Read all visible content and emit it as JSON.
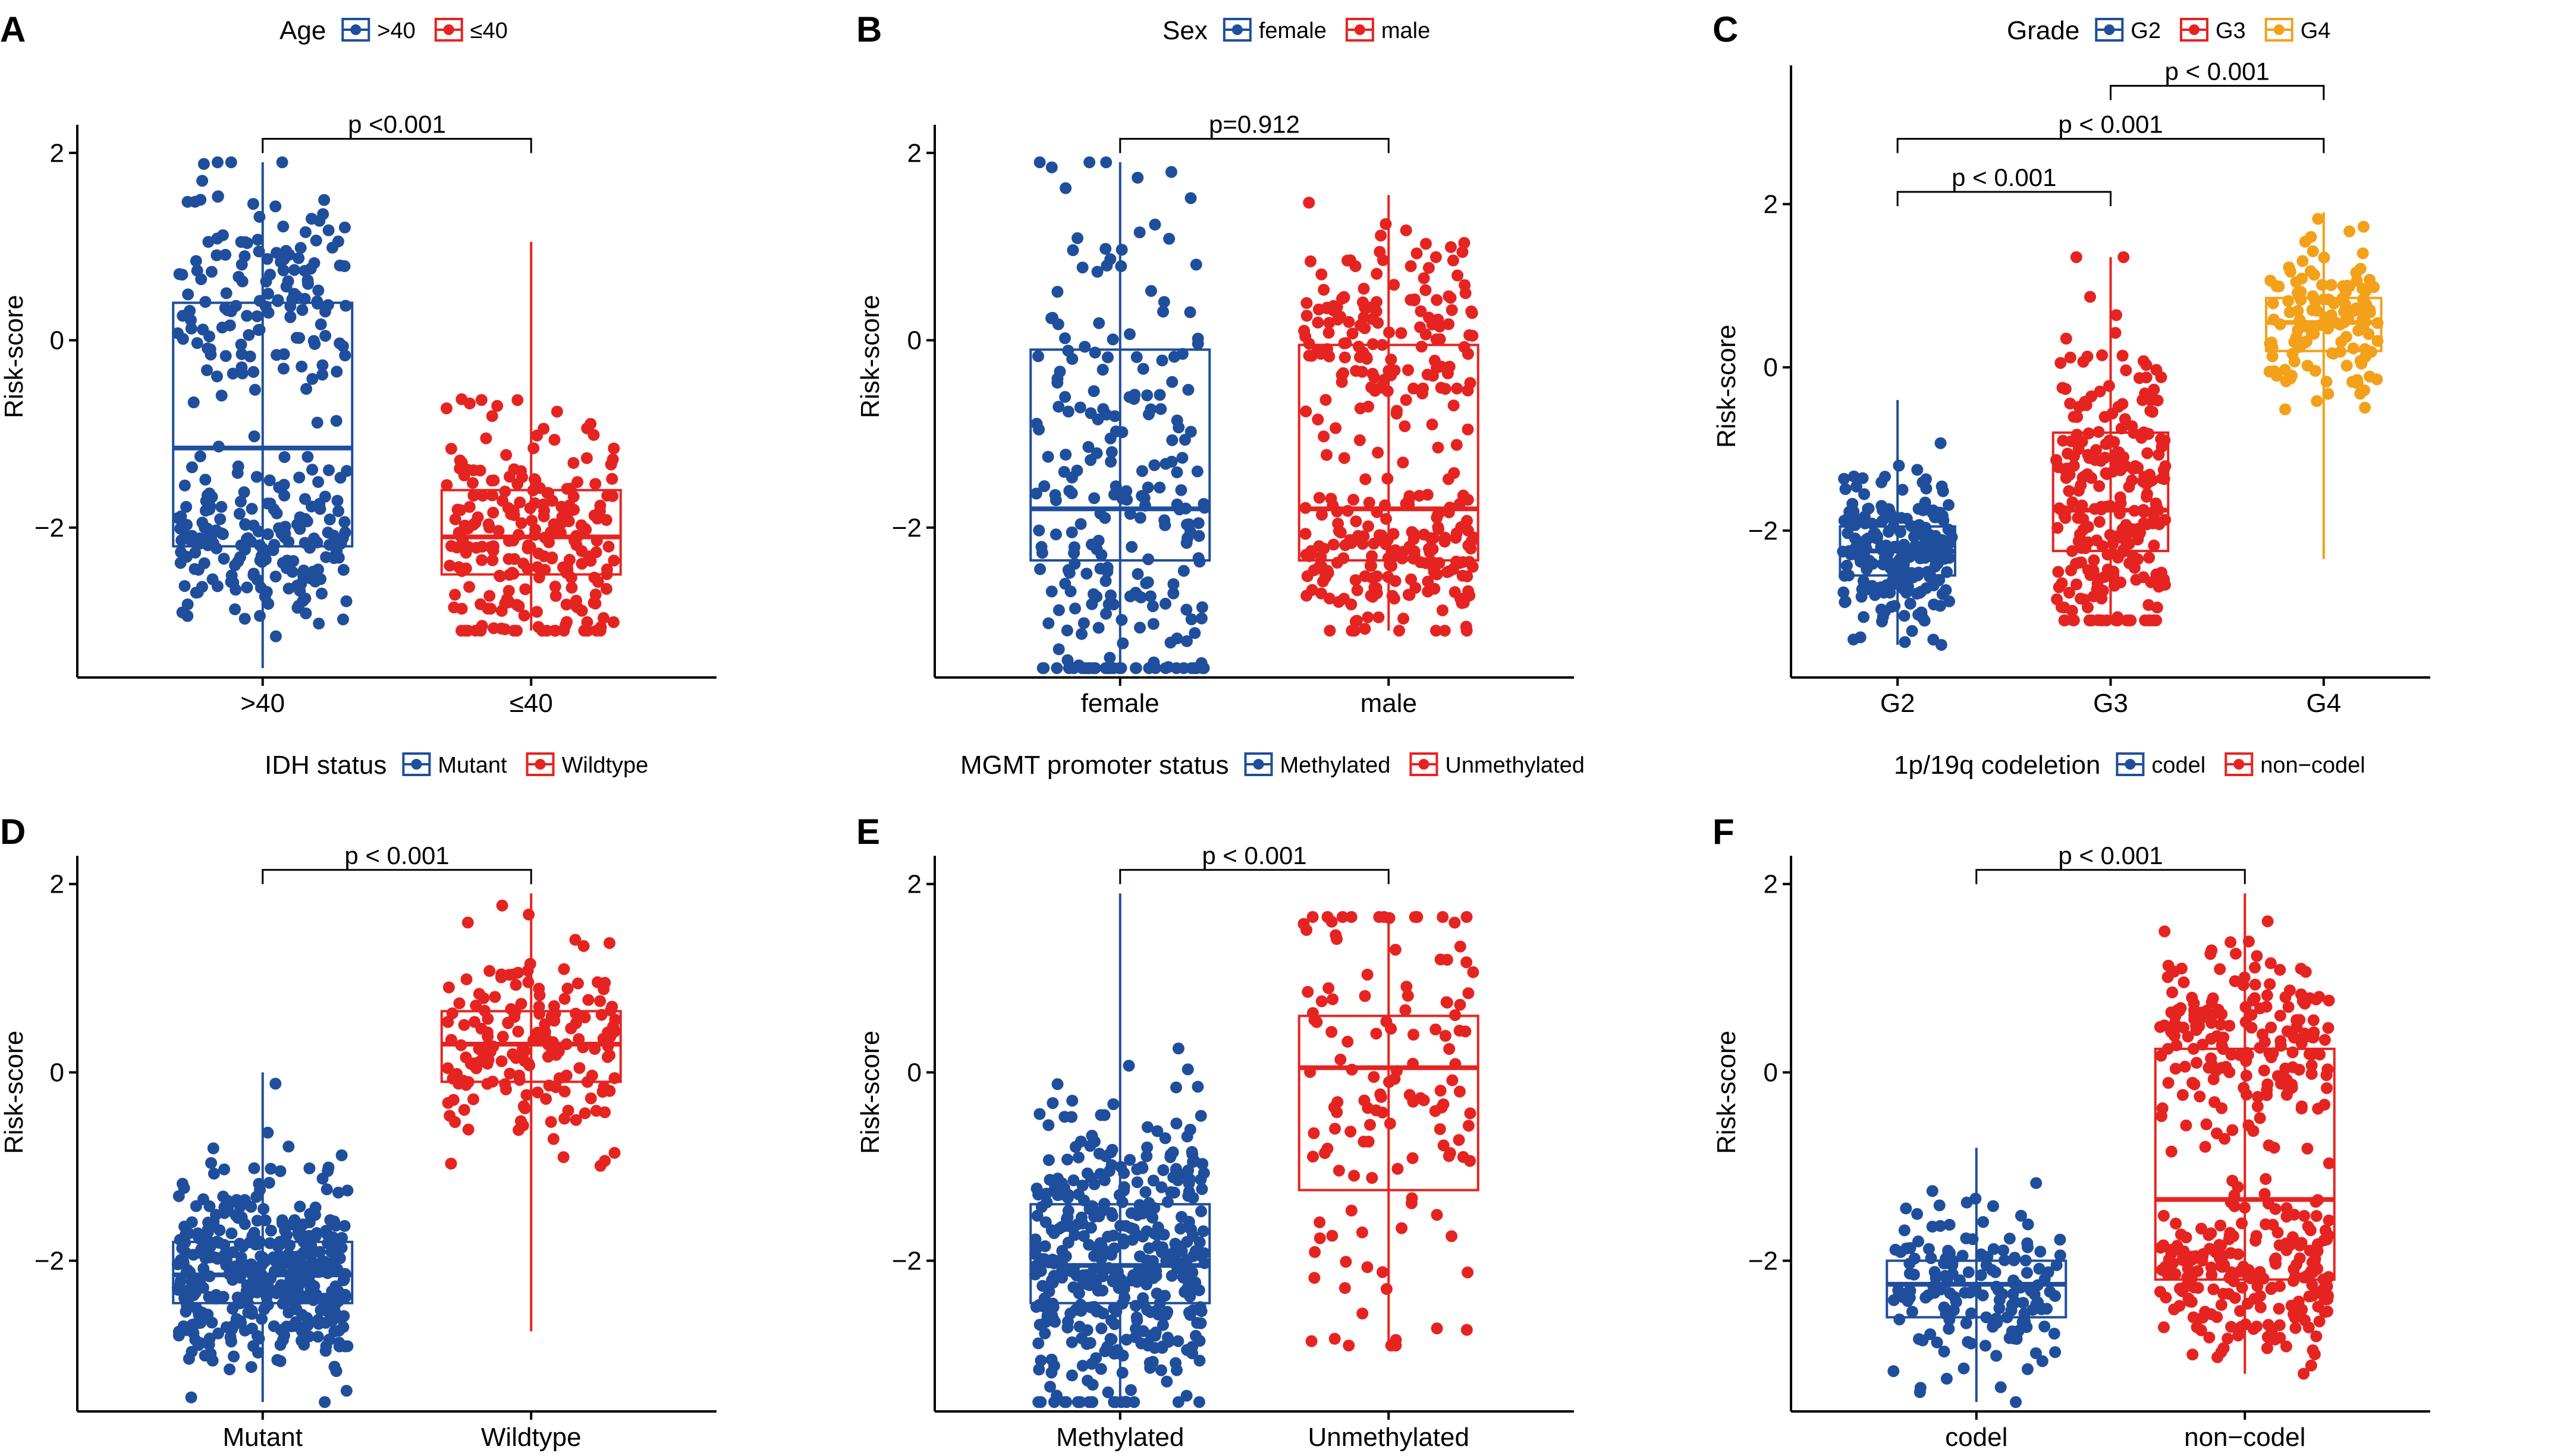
{
  "colors": {
    "blue": "#1f4e9c",
    "red": "#e52421",
    "orange": "#f3a11a",
    "axis": "#000000"
  },
  "chart_data": [
    {
      "panel": "A",
      "type": "boxplot",
      "legend_title": "Age",
      "ylabel": "Risk-score",
      "ylim": [
        -3.6,
        2.3
      ],
      "yticks": [
        "2",
        "0",
        "−2"
      ],
      "groups": [
        {
          "name": ">40",
          "color": "blue",
          "n": 330,
          "min": -3.5,
          "q1": -2.2,
          "median": -1.15,
          "q3": 0.4,
          "max": 1.9,
          "dist": "bimodal"
        },
        {
          "name": "≤40",
          "color": "red",
          "n": 230,
          "min": -3.1,
          "q1": -2.5,
          "median": -2.1,
          "q3": -1.6,
          "max": 1.05,
          "dist": "normal"
        }
      ],
      "comparisons": [
        {
          "from": 0,
          "to": 1,
          "y": 2.15,
          "label": "p <0.001"
        }
      ]
    },
    {
      "panel": "B",
      "type": "boxplot",
      "legend_title": "Sex",
      "ylabel": "Risk-score",
      "ylim": [
        -3.6,
        2.3
      ],
      "yticks": [
        "2",
        "0",
        "−2"
      ],
      "groups": [
        {
          "name": "female",
          "color": "blue",
          "n": 240,
          "min": -3.5,
          "q1": -2.35,
          "median": -1.8,
          "q3": -0.1,
          "max": 1.9,
          "dist": "normal"
        },
        {
          "name": "male",
          "color": "red",
          "n": 330,
          "min": -3.1,
          "q1": -2.35,
          "median": -1.8,
          "q3": -0.05,
          "max": 1.55,
          "dist": "bimodal"
        }
      ],
      "comparisons": [
        {
          "from": 0,
          "to": 1,
          "y": 2.15,
          "label": "p=0.912"
        }
      ]
    },
    {
      "panel": "C",
      "type": "boxplot",
      "legend_title": "Grade",
      "ylabel": "Risk-score",
      "ylim": [
        -3.8,
        3.7
      ],
      "yticks": [
        "2",
        "0",
        "−2"
      ],
      "groups": [
        {
          "name": "G2",
          "color": "blue",
          "n": 220,
          "min": -3.4,
          "q1": -2.55,
          "median": -2.25,
          "q3": -1.95,
          "max": -0.4,
          "dist": "normal"
        },
        {
          "name": "G3",
          "color": "red",
          "n": 260,
          "min": -3.1,
          "q1": -2.25,
          "median": -1.75,
          "q3": -0.8,
          "max": 1.35,
          "dist": "normal"
        },
        {
          "name": "G4",
          "color": "orange",
          "n": 130,
          "min": -2.35,
          "q1": 0.2,
          "median": 0.55,
          "q3": 0.85,
          "max": 1.9,
          "dist": "normal"
        }
      ],
      "comparisons": [
        {
          "from": 0,
          "to": 1,
          "y": 2.15,
          "label": "p < 0.001"
        },
        {
          "from": 0,
          "to": 2,
          "y": 2.8,
          "label": "p < 0.001"
        },
        {
          "from": 1,
          "to": 2,
          "y": 3.45,
          "label": "p < 0.001"
        }
      ]
    },
    {
      "panel": "D",
      "type": "boxplot",
      "legend_title": "IDH status",
      "ylabel": "Risk-score",
      "ylim": [
        -3.6,
        2.3
      ],
      "yticks": [
        "2",
        "0",
        "−2"
      ],
      "groups": [
        {
          "name": "Mutant",
          "color": "blue",
          "n": 400,
          "min": -3.5,
          "q1": -2.45,
          "median": -2.15,
          "q3": -1.8,
          "max": 0.0,
          "dist": "normal"
        },
        {
          "name": "Wildtype",
          "color": "red",
          "n": 170,
          "min": -2.75,
          "q1": -0.1,
          "median": 0.3,
          "q3": 0.65,
          "max": 1.9,
          "dist": "normal"
        }
      ],
      "comparisons": [
        {
          "from": 0,
          "to": 1,
          "y": 2.15,
          "label": "p < 0.001"
        }
      ]
    },
    {
      "panel": "E",
      "type": "boxplot",
      "legend_title": "MGMT promoter status",
      "ylabel": "Risk-score",
      "ylim": [
        -3.6,
        2.3
      ],
      "yticks": [
        "2",
        "0",
        "−2"
      ],
      "groups": [
        {
          "name": "Methylated",
          "color": "blue",
          "n": 430,
          "min": -3.5,
          "q1": -2.45,
          "median": -2.05,
          "q3": -1.4,
          "max": 1.9,
          "dist": "normal"
        },
        {
          "name": "Unmethylated",
          "color": "red",
          "n": 130,
          "min": -2.9,
          "q1": -1.25,
          "median": 0.05,
          "q3": 0.6,
          "max": 1.65,
          "dist": "normal"
        }
      ],
      "comparisons": [
        {
          "from": 0,
          "to": 1,
          "y": 2.15,
          "label": "p < 0.001"
        }
      ]
    },
    {
      "panel": "F",
      "type": "boxplot",
      "legend_title": "1p/19q codeletion",
      "ylabel": "Risk-score",
      "ylim": [
        -3.6,
        2.3
      ],
      "yticks": [
        "2",
        "0",
        "−2"
      ],
      "groups": [
        {
          "name": "codel",
          "color": "blue",
          "n": 160,
          "min": -3.5,
          "q1": -2.6,
          "median": -2.25,
          "q3": -2.0,
          "max": -0.8,
          "dist": "normal"
        },
        {
          "name": "non−codel",
          "color": "red",
          "n": 400,
          "min": -3.2,
          "q1": -2.2,
          "median": -1.35,
          "q3": 0.25,
          "max": 1.9,
          "dist": "bimodal"
        }
      ],
      "comparisons": [
        {
          "from": 0,
          "to": 1,
          "y": 2.15,
          "label": "p < 0.001"
        }
      ]
    }
  ]
}
